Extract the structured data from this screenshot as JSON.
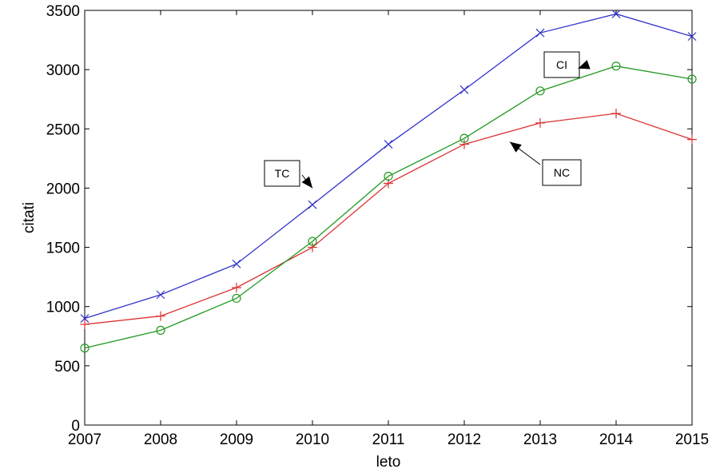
{
  "chart_data": {
    "type": "line",
    "title": "",
    "xlabel": "leto",
    "ylabel": "citati",
    "xlim": [
      2007,
      2015
    ],
    "ylim": [
      0,
      3500
    ],
    "x": [
      2007,
      2008,
      2009,
      2010,
      2011,
      2012,
      2013,
      2014,
      2015
    ],
    "x_ticks": [
      "2007",
      "2008",
      "2009",
      "2010",
      "2011",
      "2012",
      "2013",
      "2014",
      "2015"
    ],
    "y_ticks": [
      "0",
      "500",
      "1000",
      "1500",
      "2000",
      "2500",
      "3000",
      "3500"
    ],
    "grid": false,
    "legend": "none",
    "series": [
      {
        "name": "TC",
        "color": "#3333cc",
        "marker": "x",
        "values": [
          900,
          1100,
          1360,
          1860,
          2370,
          2830,
          3310,
          3470,
          3280
        ]
      },
      {
        "name": "NC",
        "color": "#dd3333",
        "marker": "+",
        "values": [
          850,
          920,
          1160,
          1500,
          2040,
          2370,
          2550,
          2630,
          2410
        ]
      },
      {
        "name": "CI",
        "color": "#229922",
        "marker": "o",
        "values": [
          650,
          800,
          1070,
          1550,
          2100,
          2420,
          2820,
          3030,
          2920
        ]
      }
    ],
    "annotations": [
      {
        "text": "TC",
        "target_x": 2010.0,
        "target_y": 2000
      },
      {
        "text": "CI",
        "target_x": 2013.5,
        "target_y": 3010
      },
      {
        "text": "NC",
        "target_x": 2012.6,
        "target_y": 2390
      }
    ]
  }
}
